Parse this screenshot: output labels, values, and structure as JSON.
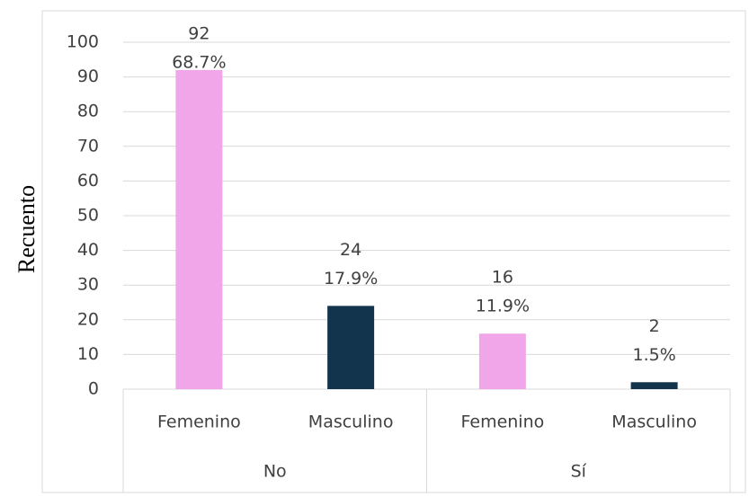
{
  "chart_data": {
    "type": "bar",
    "y_label": "Recuento",
    "groups": [
      "No",
      "Sí"
    ],
    "categories": [
      "Femenino",
      "Masculino",
      "Femenino",
      "Masculino"
    ],
    "values": [
      92,
      24,
      16,
      2
    ],
    "percent_labels": [
      "68.7%",
      "17.9%",
      "11.9%",
      "1.5%"
    ],
    "colors": [
      "#f0a6e8",
      "#12344d",
      "#f0a6e8",
      "#12344d"
    ],
    "ylim": [
      0,
      100
    ],
    "yticks": [
      0,
      10,
      20,
      30,
      40,
      50,
      60,
      70,
      80,
      90,
      100
    ],
    "grid": true
  }
}
